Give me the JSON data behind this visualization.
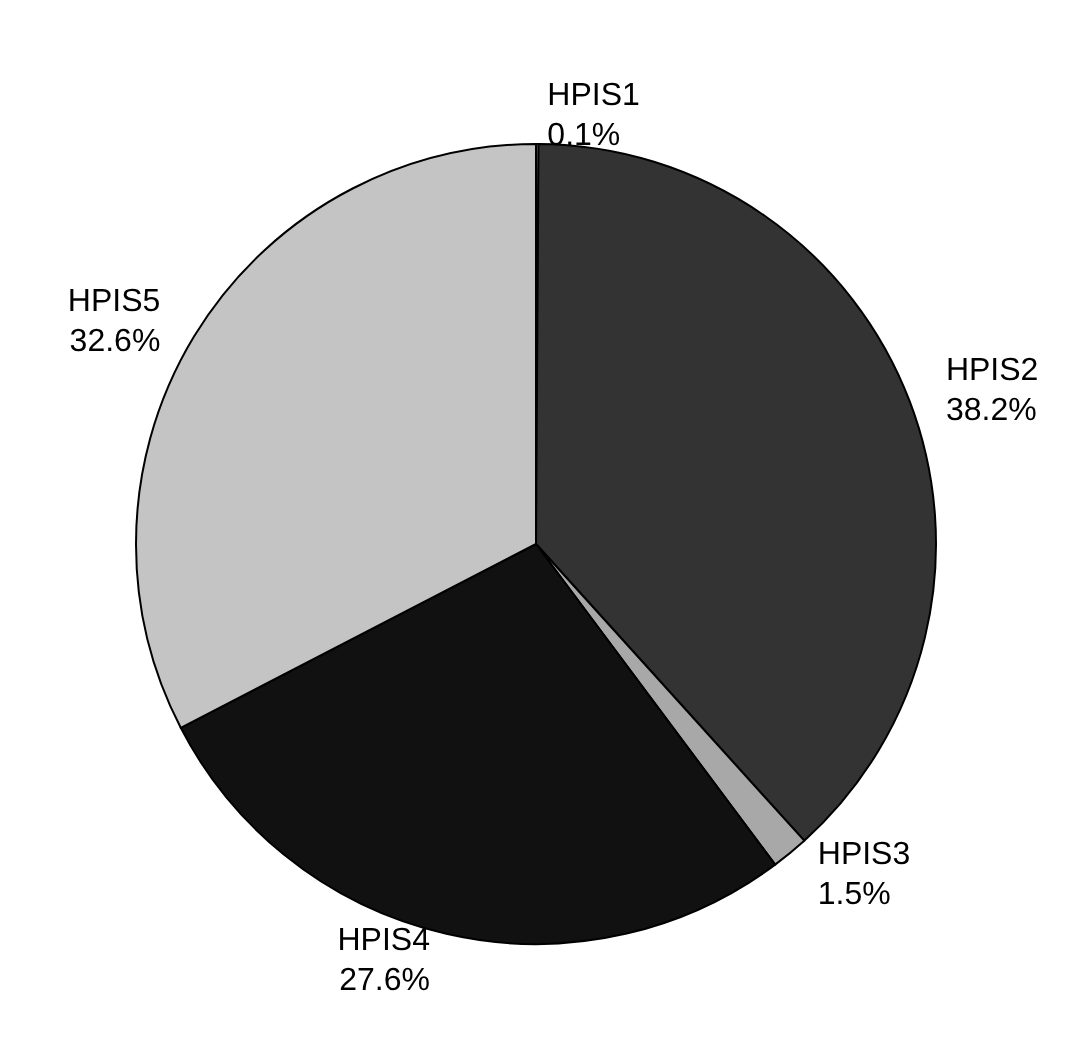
{
  "chart_data": {
    "type": "pie",
    "categories": [
      "HPIS1",
      "HPIS2",
      "HPIS3",
      "HPIS4",
      "HPIS5"
    ],
    "values": [
      0.1,
      38.2,
      1.5,
      27.6,
      32.6
    ],
    "colors": [
      "#ffffff",
      "#333333",
      "#a8a8a8",
      "#111111",
      "#c4c4c4"
    ],
    "value_labels": [
      "0.1%",
      "38.2%",
      "1.5%",
      "27.6%",
      "32.6%"
    ],
    "legend": false
  }
}
